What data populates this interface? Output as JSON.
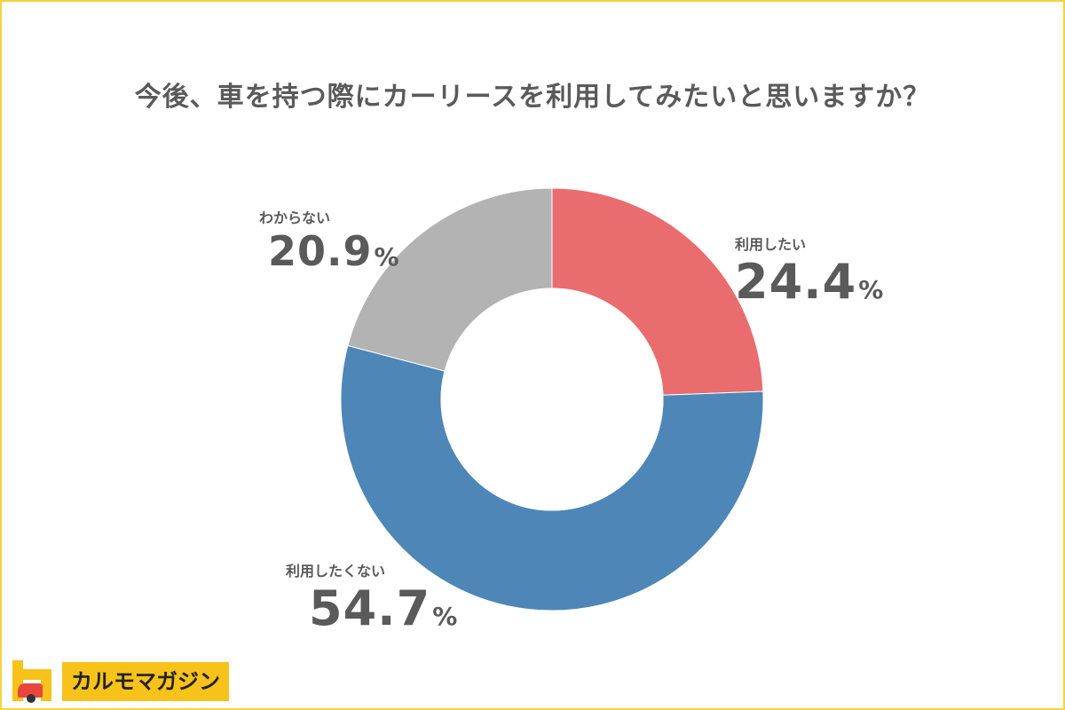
{
  "chart_data": {
    "type": "pie",
    "title": "今後、車を持つ際にカーリースを利用してみたいと思いますか？",
    "unit": "%",
    "slices": [
      {
        "label": "利用したい",
        "value": 24.4,
        "display": "24.4",
        "color": "#E96D6F"
      },
      {
        "label": "利用したくない",
        "value": 54.7,
        "display": "54.7",
        "color": "#4E86B8"
      },
      {
        "label": "わからない",
        "value": 20.9,
        "display": "20.9",
        "color": "#B3B3B3"
      }
    ]
  },
  "brand": {
    "name": "カルモマガジン",
    "accent": "#F7C21A"
  }
}
